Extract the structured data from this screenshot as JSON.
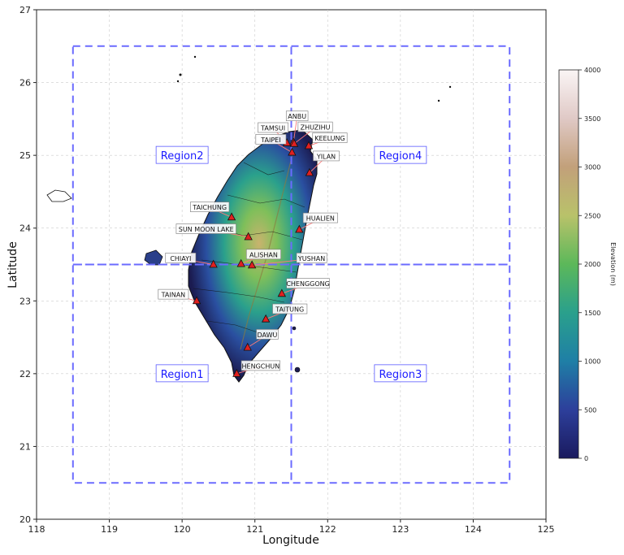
{
  "map": {
    "xlabel": "Longitude",
    "ylabel": "Latitude",
    "x_ticks": [
      "118",
      "119",
      "120",
      "121",
      "122",
      "123",
      "124",
      "125"
    ],
    "y_ticks": [
      "20",
      "21",
      "22",
      "23",
      "24",
      "25",
      "26",
      "27"
    ],
    "xlim": [
      118,
      125
    ],
    "ylim": [
      20,
      27
    ]
  },
  "regions": [
    {
      "label": "Region1",
      "lon_range": [
        118.5,
        121.5
      ],
      "lat_range": [
        20.5,
        23.5
      ],
      "label_lon": 120.0,
      "label_lat": 22.0
    },
    {
      "label": "Region2",
      "lon_range": [
        118.5,
        121.5
      ],
      "lat_range": [
        23.5,
        26.5
      ],
      "label_lon": 120.0,
      "label_lat": 25.0
    },
    {
      "label": "Region3",
      "lon_range": [
        121.5,
        124.5
      ],
      "lat_range": [
        20.5,
        23.5
      ],
      "label_lon": 123.0,
      "label_lat": 22.0
    },
    {
      "label": "Region4",
      "lon_range": [
        121.5,
        124.5
      ],
      "lat_range": [
        23.5,
        26.5
      ],
      "label_lon": 123.0,
      "label_lat": 25.0
    }
  ],
  "stations": [
    {
      "name": "ANBU",
      "lon": 121.53,
      "lat": 25.18,
      "label_lon": 121.58,
      "label_lat": 25.53
    },
    {
      "name": "TAMSUI",
      "lon": 121.44,
      "lat": 25.17,
      "label_lon": 121.25,
      "label_lat": 25.37
    },
    {
      "name": "ZHUZIHU",
      "lon": 121.54,
      "lat": 25.16,
      "label_lon": 121.83,
      "label_lat": 25.38
    },
    {
      "name": "TAIPEI",
      "lon": 121.51,
      "lat": 25.04,
      "label_lon": 121.22,
      "label_lat": 25.21
    },
    {
      "name": "KEELUNG",
      "lon": 121.74,
      "lat": 25.13,
      "label_lon": 122.03,
      "label_lat": 25.23
    },
    {
      "name": "YILAN",
      "lon": 121.75,
      "lat": 24.76,
      "label_lon": 121.98,
      "label_lat": 24.98
    },
    {
      "name": "TAICHUNG",
      "lon": 120.68,
      "lat": 24.15,
      "label_lon": 120.38,
      "label_lat": 24.28
    },
    {
      "name": "HUALIEN",
      "lon": 121.61,
      "lat": 23.98,
      "label_lon": 121.9,
      "label_lat": 24.13
    },
    {
      "name": "SUN MOON LAKE",
      "lon": 120.91,
      "lat": 23.88,
      "label_lon": 120.33,
      "label_lat": 23.98
    },
    {
      "name": "CHIAYI",
      "lon": 120.43,
      "lat": 23.5,
      "label_lon": 119.98,
      "label_lat": 23.58
    },
    {
      "name": "ALISHAN",
      "lon": 120.81,
      "lat": 23.51,
      "label_lon": 121.12,
      "label_lat": 23.63
    },
    {
      "name": "YUSHAN",
      "lon": 120.96,
      "lat": 23.49,
      "label_lon": 121.78,
      "label_lat": 23.58
    },
    {
      "name": "CHENGGONG",
      "lon": 121.37,
      "lat": 23.1,
      "label_lon": 121.73,
      "label_lat": 23.23
    },
    {
      "name": "TAINAN",
      "lon": 120.2,
      "lat": 23.0,
      "label_lon": 119.88,
      "label_lat": 23.08
    },
    {
      "name": "TAITUNG",
      "lon": 121.15,
      "lat": 22.75,
      "label_lon": 121.48,
      "label_lat": 22.88
    },
    {
      "name": "DAWU",
      "lon": 120.9,
      "lat": 22.36,
      "label_lon": 121.17,
      "label_lat": 22.53
    },
    {
      "name": "HENGCHUN",
      "lon": 120.75,
      "lat": 22.0,
      "label_lon": 121.08,
      "label_lat": 22.1
    }
  ],
  "colorbar": {
    "title": "Elevation (m)",
    "ticks": [
      "0",
      "500",
      "1000",
      "1500",
      "2000",
      "2500",
      "3000",
      "3500",
      "4000"
    ],
    "range": [
      0,
      4000
    ],
    "colors": [
      "#1a1a5e",
      "#2d3f9b",
      "#1f7fa6",
      "#2aa08c",
      "#5cb85a",
      "#b9c26a",
      "#c2a07a",
      "#e0c9c6",
      "#faf5f5"
    ]
  },
  "colors": {
    "region_box": "#6b6bff",
    "station_marker": "#e02020",
    "leader_line": "#ff7a7a",
    "coastline": "#111111",
    "lowland": "#1b1b50"
  }
}
